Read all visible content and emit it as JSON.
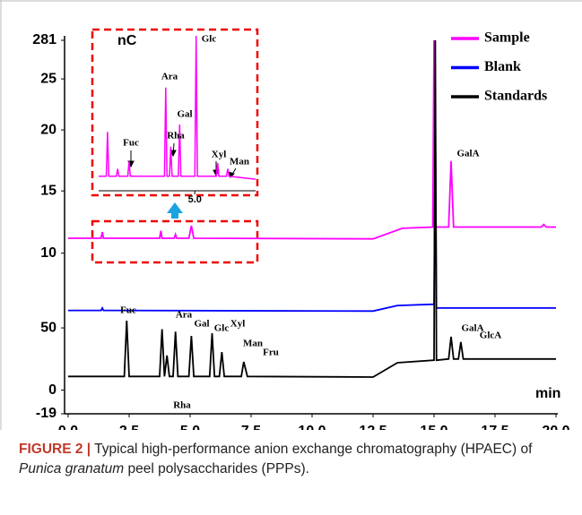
{
  "chart_data": [
    {
      "type": "line",
      "x_label": "min",
      "y_label": "nC",
      "legend": "upper right",
      "xlim": [
        0,
        20
      ],
      "xticks": [
        {
          "value": 0,
          "label": "0.0"
        },
        2.5,
        {
          "value": 5,
          "label": "5.0"
        },
        7.5,
        {
          "value": 10,
          "label": "10.0"
        },
        12.5,
        {
          "value": 15,
          "label": "15.0"
        },
        17.5,
        {
          "value": 20,
          "label": "20.0"
        }
      ],
      "ylim": [
        -19,
        281
      ],
      "yticks": [
        -19,
        0,
        50,
        {
          "value": 110,
          "label": "10"
        },
        {
          "value": 160,
          "label": "15"
        },
        {
          "value": 209,
          "label": "20"
        },
        {
          "value": 250,
          "label": "25"
        },
        281
      ],
      "series": [
        {
          "name": "Sample",
          "color": "#ff00ff",
          "x": [
            0,
            1.35,
            1.4,
            1.45,
            3.75,
            3.8,
            3.85,
            4.35,
            4.4,
            4.45,
            4.95,
            5.05,
            5.15,
            12.5,
            13.7,
            14.95,
            15.0,
            15.05,
            15.6,
            15.7,
            15.8,
            19.4,
            19.5,
            19.6,
            20
          ],
          "values": [
            122,
            122,
            127,
            122,
            122,
            128,
            122,
            122,
            125,
            122,
            122,
            132,
            122,
            121.5,
            130,
            131,
            281,
            131,
            131,
            184,
            131,
            131,
            133,
            131,
            131
          ]
        },
        {
          "name": "Blank",
          "color": "#0000ff",
          "x": [
            0,
            1.35,
            1.4,
            1.45,
            12.5,
            13.5,
            15.0,
            15.05,
            15.1,
            20
          ],
          "values": [
            64,
            64,
            66,
            64,
            63.5,
            68,
            69,
            223,
            66,
            66
          ]
        },
        {
          "name": "Standards",
          "color": "#000000",
          "x": [
            0,
            2.3,
            2.4,
            2.5,
            3.75,
            3.85,
            3.95,
            4.05,
            4.15,
            4.3,
            4.4,
            4.5,
            4.95,
            5.05,
            5.15,
            5.8,
            5.9,
            6.0,
            6.2,
            6.3,
            6.4,
            7.1,
            7.2,
            7.35,
            12.5,
            13.5,
            15.0,
            15.05,
            15.1,
            15.6,
            15.7,
            15.8,
            16.0,
            16.1,
            16.2,
            20
          ],
          "values": [
            11,
            11,
            55.8,
            11,
            11,
            49,
            11,
            27.8,
            11,
            11,
            47,
            11,
            11,
            43.6,
            11,
            11,
            45.7,
            11,
            11,
            30.6,
            11,
            11,
            22.7,
            11,
            10.5,
            22,
            24,
            281,
            24,
            25,
            42.9,
            25,
            25,
            38.6,
            25,
            25
          ]
        }
      ],
      "annotations": [
        "Fuc",
        "Ara",
        "Gal",
        "Glc",
        "Xyl",
        "Man",
        "Fru",
        "Rha",
        "GalA",
        "GlcA",
        "GalA"
      ]
    },
    {
      "type": "line",
      "xlim": [
        1.2,
        7.4
      ],
      "ylim": [
        0,
        100
      ],
      "xticks": [
        {
          "value": 5,
          "label": "5.0"
        }
      ],
      "series": [
        {
          "color": "#ff00ff",
          "x": [
            1.2,
            1.5,
            1.55,
            1.6,
            1.9,
            1.95,
            2.0,
            2.35,
            2.4,
            2.45,
            3.8,
            3.85,
            3.9,
            4.0,
            4.05,
            4.1,
            4.35,
            4.4,
            4.45,
            5.0,
            5.05,
            5.1,
            5.85,
            5.9,
            5.95,
            6.25,
            6.3,
            6.35,
            7.4
          ],
          "values": [
            5,
            5,
            35,
            5,
            5,
            10,
            5,
            5,
            15,
            5,
            5,
            65,
            5,
            5,
            25,
            5,
            5,
            40,
            5,
            5,
            100,
            5,
            5,
            14,
            5,
            5,
            10,
            5,
            3
          ]
        }
      ],
      "annotations": [
        "Glc",
        "Ara",
        "Gal",
        "Rha",
        "Fuc",
        "Xyl",
        "Man"
      ]
    }
  ],
  "caption": {
    "label": "FIGURE 2 |",
    "text_1": "Typical high-performance anion exchange chromatography (HPAEC) of",
    "italic": "Punica granatum",
    "text_2": "peel polysaccharides (PPPs)."
  }
}
